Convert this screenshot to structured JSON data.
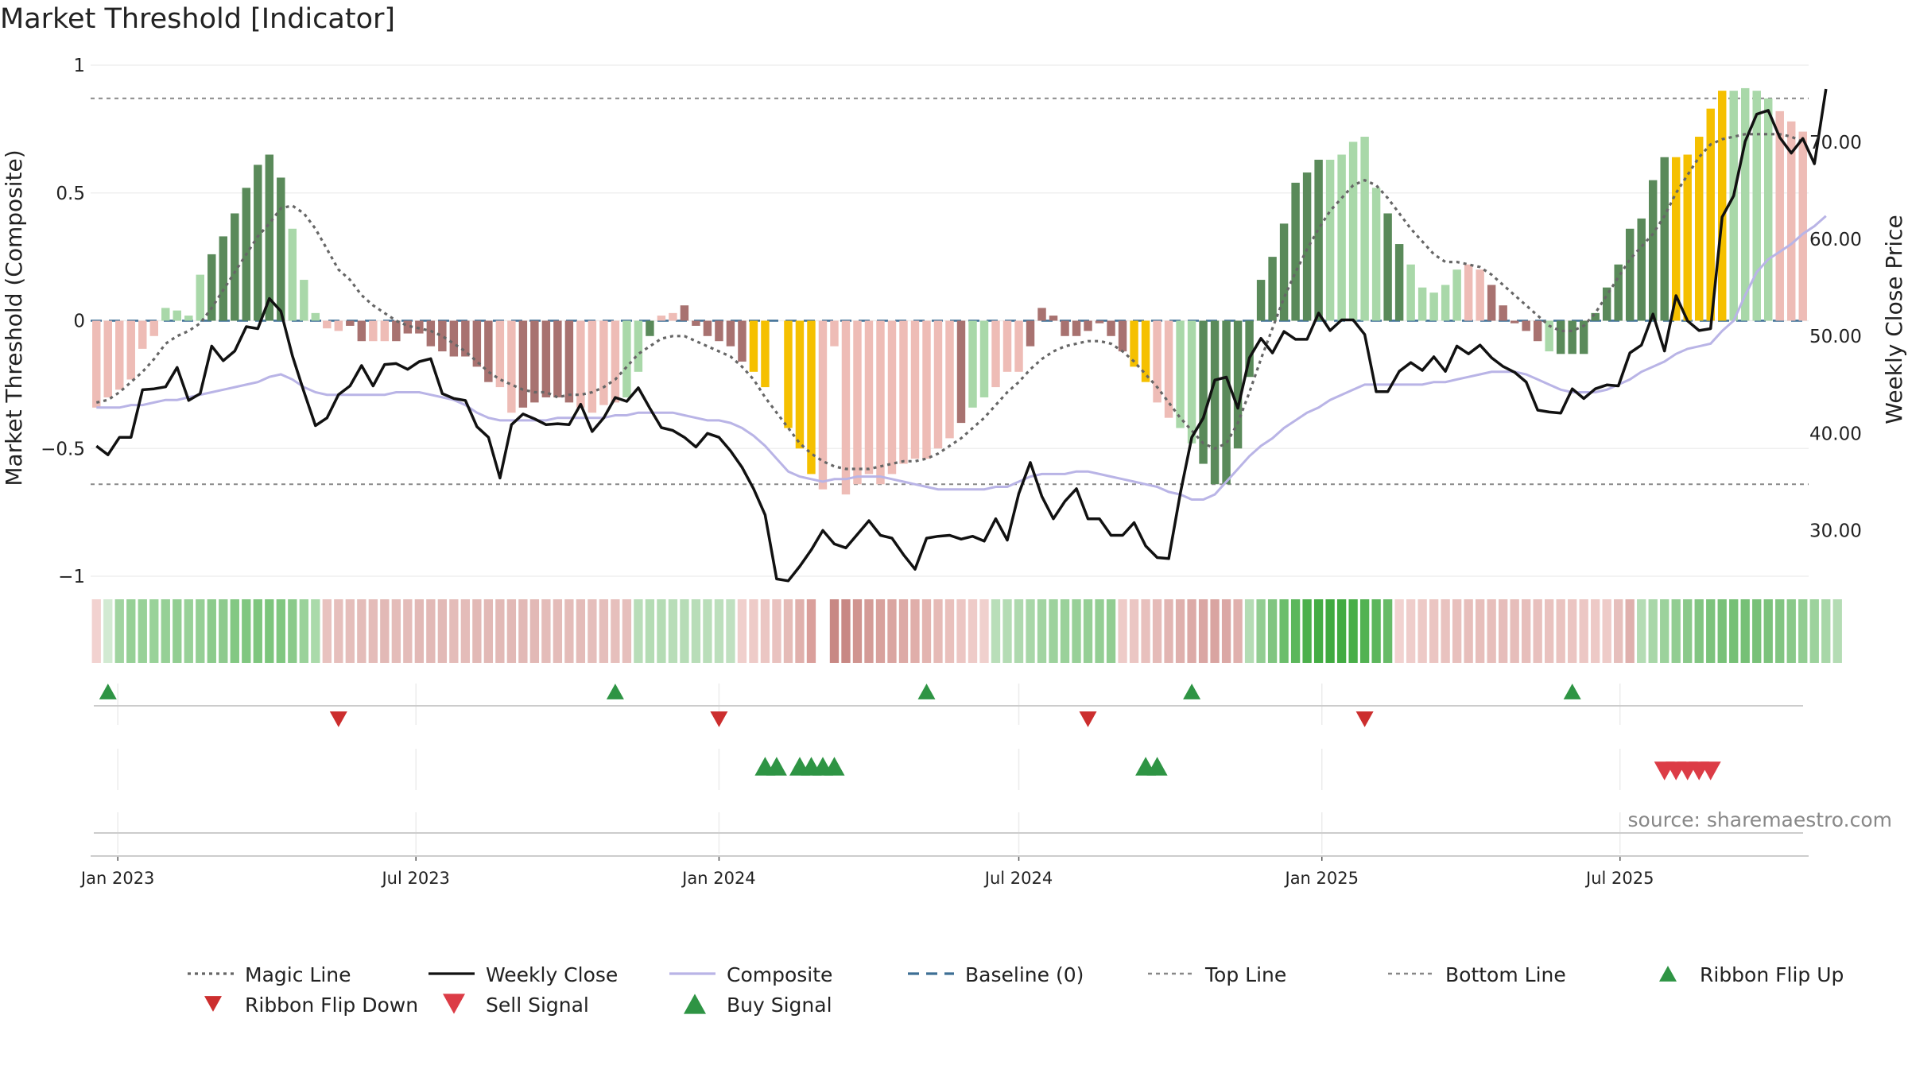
{
  "title": "Market Threshold [Indicator]",
  "source_text": "source: sharemaestro.com",
  "colors": {
    "strong_green": "#5a8a5a",
    "light_green": "#a9d8a9",
    "strong_red": "#a87270",
    "light_red": "#eebcb6",
    "yellow": "#f5c000",
    "close": "#111111",
    "composite": "#b9b4e6",
    "magic": "#666666",
    "baseline": "#3d6f95",
    "buy": "#2e9444",
    "sell": "#dc3c46",
    "flip_down": "#cc2e2e"
  },
  "chart_data": {
    "type": "bar",
    "x_start": "2022-12-19",
    "x_step_days": 7,
    "xticks": [
      "Jan 2023",
      "Jul 2023",
      "Jan 2024",
      "Jul 2024",
      "Jan 2025",
      "Jul 2025"
    ],
    "xtick_dates": [
      "2023-01-01",
      "2023-07-01",
      "2024-01-01",
      "2024-07-01",
      "2025-01-01",
      "2025-07-01"
    ],
    "y_left": {
      "label": "Market Threshold (Composite)",
      "range": [
        -1,
        1
      ],
      "ticks": [
        1,
        0.5,
        0,
        -0.5,
        -1
      ],
      "tick_labels": [
        "1",
        "0.5",
        "0",
        "−0.5",
        "−1"
      ]
    },
    "y_right": {
      "label": "Weekly Close Price",
      "range": [
        22,
        75.5
      ],
      "ticks": [
        70,
        60,
        50,
        40,
        30
      ],
      "tick_labels": [
        "70.00",
        "60.00",
        "50.00",
        "40.00",
        "30.00"
      ]
    },
    "top_line": 0.87,
    "bottom_line": -0.64,
    "bar_values": [
      -0.34,
      -0.3,
      -0.27,
      -0.23,
      -0.11,
      -0.06,
      0.05,
      0.04,
      0.02,
      0.18,
      0.26,
      0.33,
      0.42,
      0.52,
      0.61,
      0.65,
      0.56,
      0.36,
      0.16,
      0.03,
      -0.03,
      -0.04,
      -0.02,
      -0.08,
      -0.08,
      -0.08,
      -0.08,
      -0.05,
      -0.05,
      -0.1,
      -0.12,
      -0.14,
      -0.14,
      -0.18,
      -0.24,
      -0.26,
      -0.36,
      -0.34,
      -0.32,
      -0.3,
      -0.3,
      -0.32,
      -0.34,
      -0.36,
      -0.33,
      -0.32,
      -0.3,
      -0.2,
      -0.06,
      0.02,
      0.03,
      0.06,
      -0.02,
      -0.06,
      -0.08,
      -0.1,
      -0.16,
      -0.2,
      -0.26,
      -0.33,
      -0.42,
      -0.5,
      -0.6,
      -0.66,
      -0.1,
      -0.68,
      -0.64,
      -0.6,
      -0.64,
      -0.6,
      -0.56,
      -0.54,
      -0.54,
      -0.5,
      -0.46,
      -0.4,
      -0.34,
      -0.3,
      -0.26,
      -0.2,
      -0.2,
      -0.1,
      0.05,
      0.02,
      -0.06,
      -0.06,
      -0.04,
      -0.01,
      -0.06,
      -0.12,
      -0.18,
      -0.24,
      -0.32,
      -0.38,
      -0.42,
      -0.48,
      -0.56,
      -0.64,
      -0.64,
      -0.5,
      -0.22,
      0.16,
      0.25,
      0.38,
      0.54,
      0.58,
      0.63,
      0.63,
      0.65,
      0.7,
      0.72,
      0.52,
      0.42,
      0.3,
      0.22,
      0.13,
      0.11,
      0.14,
      0.2,
      0.22,
      0.2,
      0.14,
      0.06,
      -0.01,
      -0.04,
      -0.08,
      -0.12,
      -0.13,
      -0.13,
      -0.13,
      0.03,
      0.13,
      0.22,
      0.36,
      0.4,
      0.55,
      0.64,
      0.64,
      0.65,
      0.72,
      0.83,
      0.9,
      0.9,
      0.91,
      0.9,
      0.87,
      0.82,
      0.78,
      0.74
    ],
    "bar_colors": "LLLLLLllllGGGGGGGlllLLRRLLRRRRRRRRRLLRRRRRLLLLllGLLRRRRRRYYnYYYLLLLLLLLLLLLRllLLLRRRRRRRRRYYLLllGGGGGGGGGGGlllllGGlllllLLRRRRRlGGGGGGGGGGYYYYYllll",
    "weekly_close": [
      38.7,
      37.8,
      39.6,
      39.6,
      44.5,
      44.6,
      44.8,
      46.8,
      43.4,
      44.1,
      49.0,
      47.5,
      48.5,
      51.0,
      50.8,
      53.9,
      52.6,
      48.0,
      44.3,
      40.8,
      41.6,
      44.0,
      44.9,
      47.0,
      44.9,
      47.1,
      47.2,
      46.6,
      47.4,
      47.7,
      44.1,
      43.6,
      43.4,
      40.7,
      39.6,
      35.4,
      40.9,
      42.0,
      41.5,
      40.9,
      41.0,
      40.9,
      43.0,
      40.2,
      41.6,
      43.7,
      43.3,
      44.7,
      42.6,
      40.6,
      40.3,
      39.6,
      38.6,
      40.0,
      39.6,
      38.2,
      36.5,
      34.3,
      31.6,
      25.0,
      24.8,
      26.3,
      28.0,
      30.0,
      28.6,
      28.2,
      29.6,
      31.0,
      29.5,
      29.2,
      27.5,
      26.0,
      29.2,
      29.4,
      29.5,
      29.1,
      29.4,
      28.9,
      31.2,
      29.0,
      33.8,
      37.0,
      33.5,
      31.2,
      33.0,
      34.3,
      31.2,
      31.2,
      29.5,
      29.5,
      30.8,
      28.4,
      27.2,
      27.1,
      33.8,
      39.6,
      41.6,
      45.5,
      45.8,
      42.6,
      47.8,
      49.8,
      48.3,
      50.5,
      49.7,
      49.7,
      52.4,
      50.6,
      51.7,
      51.7,
      50.2,
      44.3,
      44.3,
      46.4,
      47.3,
      46.5,
      47.9,
      46.4,
      49.0,
      48.2,
      49.1,
      47.8,
      46.9,
      46.3,
      45.3,
      42.4,
      42.2,
      42.1,
      44.6,
      43.6,
      44.6,
      45.0,
      44.9,
      48.3,
      49.1,
      52.3,
      48.5,
      54.2,
      51.6,
      50.6,
      50.8,
      62.3,
      64.5,
      70.1,
      72.9,
      73.3,
      70.5,
      68.9,
      70.4,
      67.8,
      75.5
    ],
    "composite": [
      -0.34,
      -0.34,
      -0.34,
      -0.33,
      -0.33,
      -0.32,
      -0.31,
      -0.31,
      -0.3,
      -0.29,
      -0.28,
      -0.27,
      -0.26,
      -0.25,
      -0.24,
      -0.22,
      -0.21,
      -0.23,
      -0.26,
      -0.28,
      -0.29,
      -0.29,
      -0.29,
      -0.29,
      -0.29,
      -0.29,
      -0.28,
      -0.28,
      -0.28,
      -0.29,
      -0.3,
      -0.31,
      -0.33,
      -0.36,
      -0.38,
      -0.39,
      -0.39,
      -0.39,
      -0.39,
      -0.39,
      -0.38,
      -0.38,
      -0.38,
      -0.38,
      -0.38,
      -0.37,
      -0.37,
      -0.36,
      -0.36,
      -0.36,
      -0.36,
      -0.37,
      -0.38,
      -0.39,
      -0.39,
      -0.4,
      -0.42,
      -0.45,
      -0.49,
      -0.54,
      -0.59,
      -0.61,
      -0.62,
      -0.63,
      -0.62,
      -0.62,
      -0.61,
      -0.61,
      -0.61,
      -0.62,
      -0.63,
      -0.64,
      -0.65,
      -0.66,
      -0.66,
      -0.66,
      -0.66,
      -0.66,
      -0.65,
      -0.65,
      -0.63,
      -0.61,
      -0.6,
      -0.6,
      -0.6,
      -0.59,
      -0.59,
      -0.6,
      -0.61,
      -0.62,
      -0.63,
      -0.64,
      -0.65,
      -0.67,
      -0.68,
      -0.7,
      -0.7,
      -0.68,
      -0.63,
      -0.58,
      -0.53,
      -0.49,
      -0.46,
      -0.42,
      -0.39,
      -0.36,
      -0.34,
      -0.31,
      -0.29,
      -0.27,
      -0.25,
      -0.25,
      -0.25,
      -0.25,
      -0.25,
      -0.25,
      -0.24,
      -0.24,
      -0.23,
      -0.22,
      -0.21,
      -0.2,
      -0.2,
      -0.2,
      -0.21,
      -0.23,
      -0.25,
      -0.27,
      -0.28,
      -0.28,
      -0.28,
      -0.27,
      -0.25,
      -0.23,
      -0.2,
      -0.18,
      -0.16,
      -0.13,
      -0.11,
      -0.1,
      -0.09,
      -0.04,
      0.0,
      0.1,
      0.19,
      0.24,
      0.27,
      0.3,
      0.34,
      0.37,
      0.41
    ],
    "magic_line": [
      -0.32,
      -0.31,
      -0.28,
      -0.24,
      -0.2,
      -0.15,
      -0.09,
      -0.06,
      -0.04,
      -0.01,
      0.05,
      0.12,
      0.19,
      0.26,
      0.33,
      0.38,
      0.44,
      0.45,
      0.42,
      0.36,
      0.28,
      0.2,
      0.16,
      0.1,
      0.06,
      0.03,
      0.0,
      -0.02,
      -0.03,
      -0.04,
      -0.06,
      -0.09,
      -0.12,
      -0.16,
      -0.2,
      -0.23,
      -0.25,
      -0.27,
      -0.28,
      -0.28,
      -0.3,
      -0.29,
      -0.29,
      -0.28,
      -0.26,
      -0.23,
      -0.18,
      -0.13,
      -0.1,
      -0.07,
      -0.06,
      -0.06,
      -0.08,
      -0.1,
      -0.12,
      -0.14,
      -0.18,
      -0.23,
      -0.3,
      -0.36,
      -0.42,
      -0.48,
      -0.52,
      -0.55,
      -0.57,
      -0.58,
      -0.58,
      -0.58,
      -0.57,
      -0.56,
      -0.55,
      -0.55,
      -0.54,
      -0.52,
      -0.49,
      -0.46,
      -0.42,
      -0.38,
      -0.33,
      -0.28,
      -0.24,
      -0.19,
      -0.15,
      -0.12,
      -0.1,
      -0.09,
      -0.08,
      -0.08,
      -0.09,
      -0.12,
      -0.16,
      -0.21,
      -0.26,
      -0.32,
      -0.38,
      -0.43,
      -0.48,
      -0.5,
      -0.48,
      -0.4,
      -0.28,
      -0.15,
      -0.03,
      0.09,
      0.19,
      0.28,
      0.36,
      0.43,
      0.48,
      0.53,
      0.55,
      0.53,
      0.48,
      0.42,
      0.36,
      0.31,
      0.26,
      0.23,
      0.23,
      0.22,
      0.21,
      0.18,
      0.14,
      0.1,
      0.06,
      0.02,
      -0.02,
      -0.04,
      -0.04,
      -0.02,
      0.03,
      0.1,
      0.17,
      0.24,
      0.29,
      0.34,
      0.41,
      0.5,
      0.57,
      0.64,
      0.69,
      0.71,
      0.72,
      0.73,
      0.73,
      0.73,
      0.73,
      0.72,
      0.7
    ],
    "ribbon_colors": [
      "#f2d2d0",
      "#d2ead2",
      "#a0d4a0",
      "#96d096",
      "#98d198",
      "#99d299",
      "#96d096",
      "#92ce92",
      "#98d198",
      "#95cf95",
      "#8ccb8c",
      "#8eca8e",
      "#83c883",
      "#80c780",
      "#7ec67e",
      "#7cc57c",
      "#80c780",
      "#8aca8a",
      "#9ad29a",
      "#aadaaa",
      "#e8c2bf",
      "#e6bfbc",
      "#e5bebb",
      "#e4bcb9",
      "#e4bcb9",
      "#e2b9b6",
      "#e4bcb9",
      "#e4bcb9",
      "#e2b9b6",
      "#e2b9b6",
      "#e2b9b6",
      "#e4bcb9",
      "#e4bcb9",
      "#e2b9b6",
      "#e2b9b6",
      "#e2b9b6",
      "#e2b9b6",
      "#e2b9b6",
      "#e2b9b6",
      "#e4bcb9",
      "#e4bcb9",
      "#e4bcb9",
      "#e4bcb9",
      "#e5bebb",
      "#e5bebb",
      "#e6bfbc",
      "#e6bfbc",
      "#b8ddb8",
      "#b4dcb4",
      "#b4dcb4",
      "#b8ddb8",
      "#b6dcb6",
      "#b8ddb8",
      "#b9deb9",
      "#bcdfbc",
      "#c0e0c0",
      "#f0cfcc",
      "#eecbc8",
      "#ebc6c3",
      "#e9c2bf",
      "#e5bbb7",
      "#e0b0ac",
      "#da9f9b",
      "#ffffff",
      "#c88884",
      "#c88884",
      "#d09490",
      "#d49b97",
      "#d8a19d",
      "#daa5a1",
      "#ddaaa6",
      "#e0aeaa",
      "#e3b4b0",
      "#e6bab6",
      "#e9c0bc",
      "#ecc6c3",
      "#eecbc8",
      "#f0d0cd",
      "#b9deb9",
      "#b4dcb4",
      "#aed9ae",
      "#a8d7a8",
      "#a2d4a2",
      "#9dd29d",
      "#9ad19a",
      "#98d098",
      "#96cf96",
      "#94ce94",
      "#92cd92",
      "#eecbc8",
      "#ebc6c3",
      "#e8c0bd",
      "#e5bbb8",
      "#e2b5b2",
      "#dfb0ad",
      "#dcaaa7",
      "#daa6a3",
      "#d9a4a1",
      "#dba8a5",
      "#e0b0ad",
      "#b4dcb4",
      "#92cd92",
      "#80c580",
      "#6cbe6c",
      "#5cb75c",
      "#4cb04c",
      "#44ad44",
      "#40aa40",
      "#42ab42",
      "#48ae48",
      "#52b252",
      "#5cb65c",
      "#68bb68",
      "#f2d2d0",
      "#efcdcb",
      "#edc9c6",
      "#ebc5c2",
      "#e9c2bf",
      "#e8c0bd",
      "#e7bebb",
      "#e7bebb",
      "#e7bebb",
      "#e6bdba",
      "#e6bdba",
      "#e7bebb",
      "#e8c0bd",
      "#e9c2bf",
      "#eac3c0",
      "#ebc5c2",
      "#ecc7c4",
      "#edc9c6",
      "#eecbc8",
      "#e6bfbc",
      "#dfb0ad",
      "#b4dcb4",
      "#a8d7a8",
      "#9cd29c",
      "#92cd92",
      "#8ac98a",
      "#82c582",
      "#7cc37c",
      "#78c178",
      "#76c076",
      "#76c076",
      "#78c178",
      "#7cc37c",
      "#82c582",
      "#8ac98a",
      "#92cd92",
      "#9cd29c",
      "#a8d7a8",
      "#b4dcb4"
    ],
    "ribbon_flip_up": [
      1,
      45,
      72,
      95,
      128
    ],
    "ribbon_flip_down": [
      21,
      54,
      86,
      110
    ],
    "buy_signal": [
      58,
      59,
      61,
      62,
      63,
      64,
      91,
      92
    ],
    "sell_signal": [
      136,
      137,
      138,
      139,
      140
    ]
  },
  "legend": [
    {
      "key": "magic",
      "label": "Magic Line",
      "style": "dot-line",
      "color": "#666666"
    },
    {
      "key": "close",
      "label": "Weekly Close",
      "style": "solid-line",
      "color": "#111111"
    },
    {
      "key": "composite",
      "label": "Composite",
      "style": "solid-line",
      "color": "#b9b4e6"
    },
    {
      "key": "baseline",
      "label": "Baseline (0)",
      "style": "dash-line",
      "color": "#3d6f95"
    },
    {
      "key": "top",
      "label": "Top Line",
      "style": "dot-line-light",
      "color": "#888888"
    },
    {
      "key": "bottom",
      "label": "Bottom Line",
      "style": "dot-line-light",
      "color": "#888888"
    },
    {
      "key": "flip-up",
      "label": "Ribbon Flip Up",
      "style": "tri-up-small",
      "color": "#2e9444"
    },
    {
      "key": "flip-down",
      "label": "Ribbon Flip Down",
      "style": "tri-down-small",
      "color": "#cc2e2e"
    },
    {
      "key": "sell",
      "label": "Sell Signal",
      "style": "tri-down",
      "color": "#dc3c46"
    },
    {
      "key": "buy",
      "label": "Buy Signal",
      "style": "tri-up",
      "color": "#2e9444"
    }
  ]
}
